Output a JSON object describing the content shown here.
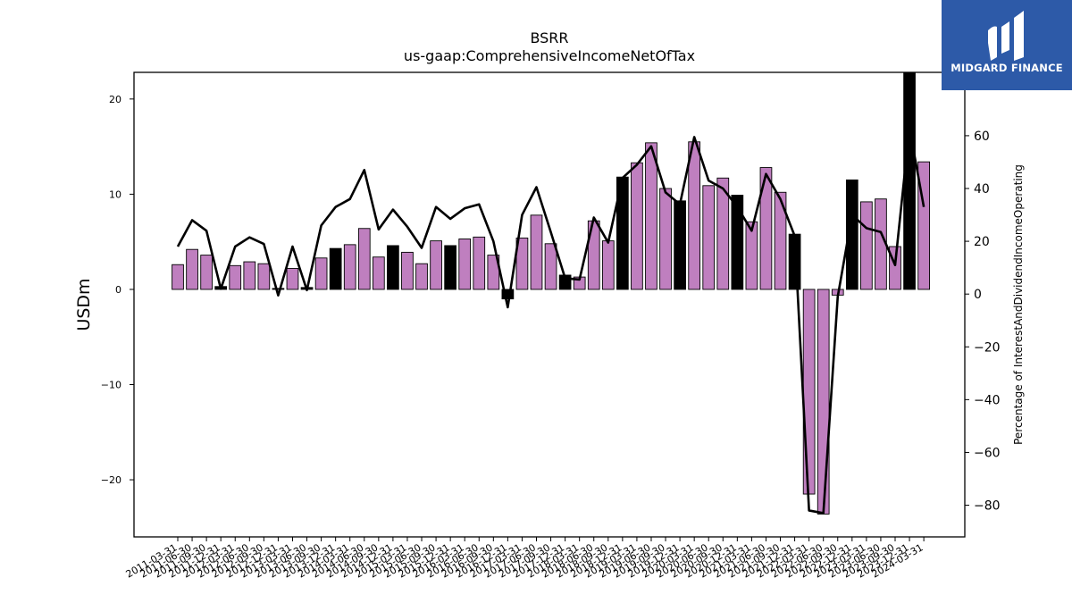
{
  "chart_data": {
    "type": "bar",
    "title": "BSRR",
    "subtitle": "us-gaap:ComprehensiveIncomeNetOfTax",
    "ylabel": "USDm",
    "y2label": "Percentage of InterestAndDividendIncomeOperating",
    "ylim": [
      -26,
      22.8
    ],
    "y2lim": [
      -92,
      84
    ],
    "yticks": [
      -20,
      -10,
      0,
      10,
      20
    ],
    "y2ticks": [
      -80,
      -60,
      -40,
      -20,
      0,
      20,
      40,
      60
    ],
    "grid": false,
    "colors": {
      "bar": "#bf7fbf",
      "bar_highlight": "#000000",
      "line": "#000000"
    },
    "categories": [
      "2011-03-31",
      "2011-06-30",
      "2011-09-30",
      "2011-12-31",
      "2012-03-31",
      "2012-06-30",
      "2012-09-30",
      "2012-12-31",
      "2013-03-31",
      "2013-06-30",
      "2013-09-30",
      "2013-12-31",
      "2014-03-31",
      "2014-06-30",
      "2014-09-30",
      "2014-12-31",
      "2015-03-31",
      "2015-06-30",
      "2015-09-30",
      "2015-12-31",
      "2016-03-31",
      "2016-06-30",
      "2016-09-30",
      "2016-12-31",
      "2017-03-31",
      "2017-06-30",
      "2017-09-30",
      "2017-12-31",
      "2018-03-31",
      "2018-06-30",
      "2018-09-30",
      "2018-12-31",
      "2019-03-31",
      "2019-06-30",
      "2019-09-30",
      "2019-12-31",
      "2020-03-31",
      "2020-06-30",
      "2020-09-30",
      "2020-12-31",
      "2021-03-31",
      "2021-06-30",
      "2021-09-30",
      "2021-12-31",
      "2022-03-31",
      "2022-06-30",
      "2022-09-30",
      "2022-12-31",
      "2023-03-31",
      "2023-06-30",
      "2023-09-30",
      "2023-12-31",
      "2024-03-31"
    ],
    "tick_labels": [
      "2011-03-31",
      "2011-06-30",
      "2011-09-30",
      "2011-12-31",
      "2012-03-31",
      "2012-06-30",
      "2012-09-30",
      "2012-12-31",
      "2013-03-31",
      "2013-06-30",
      "2013-09-30",
      "2013-12-31",
      "2014-03-31",
      "2014-06-30",
      "2014-09-30",
      "2014-12-31",
      "2015-03-31",
      "2015-06-30",
      "2015-09-30",
      "2015-12-31",
      "2016-03-31",
      "2016-06-30",
      "2016-09-30",
      "2016-12-31",
      "2017-03-31",
      "2017-06-30",
      "2017-09-30",
      "2017-12-31",
      "2018-03-31",
      "2018-06-30",
      "2018-09-30",
      "2018-12-31",
      "2019-03-31",
      "2019-06-30",
      "2019-09-30",
      "2019-12-31",
      "2020-03-31",
      "2020-06-30",
      "2020-09-30",
      "2020-12-31",
      "2021-03-31",
      "2021-06-30",
      "2021-09-30",
      "2021-12-31",
      "2022-03-31",
      "2022-06-30",
      "2022-09-30",
      "2022-12-31",
      "2023-03-31",
      "2023-06-30",
      "2023-09-30",
      "2023-12-31",
      "2024-03-31"
    ],
    "series": [
      {
        "axis": "left",
        "values": [
          2.6,
          4.2,
          3.6,
          0.3,
          2.5,
          2.9,
          2.7,
          0.1,
          2.2,
          0.2,
          3.3,
          4.3,
          4.7,
          6.4,
          3.4,
          4.6,
          3.9,
          2.7,
          5.1,
          4.6,
          5.3,
          5.5,
          3.6,
          -1.0,
          5.4,
          7.8,
          4.8,
          1.5,
          1.3,
          7.2,
          5.1,
          11.8,
          13.3,
          15.4,
          10.6,
          9.3,
          15.5,
          10.9,
          11.7,
          9.9,
          7.1,
          12.8,
          10.2,
          5.8,
          -21.5,
          -23.6,
          -0.6,
          11.5,
          9.2,
          9.5,
          4.5,
          22.8,
          13.4
        ],
        "highlight": [
          false,
          false,
          false,
          true,
          false,
          false,
          false,
          true,
          false,
          true,
          false,
          true,
          false,
          false,
          false,
          true,
          false,
          false,
          false,
          true,
          false,
          false,
          false,
          true,
          false,
          false,
          false,
          true,
          false,
          false,
          false,
          true,
          false,
          false,
          false,
          true,
          false,
          false,
          false,
          true,
          false,
          false,
          false,
          true,
          false,
          false,
          false,
          true,
          false,
          false,
          false,
          true,
          false
        ]
      },
      {
        "axis": "right",
        "values": [
          18,
          28,
          24,
          2,
          18,
          21.5,
          19,
          -0.5,
          18,
          1.5,
          26,
          33,
          36,
          47,
          24.5,
          32,
          25.5,
          17.5,
          33,
          28.5,
          32.5,
          34,
          20,
          -5,
          30,
          40.5,
          23.5,
          6,
          5.5,
          29,
          19.5,
          44,
          49,
          56,
          38.5,
          34,
          59.5,
          43,
          40,
          33,
          24,
          45.5,
          36,
          22,
          -82,
          -83,
          -1,
          30,
          25,
          23.5,
          11,
          63,
          33
        ]
      }
    ]
  },
  "logo": {
    "text": "MIDGARD FINANCE",
    "icon": "midgard-logo-icon"
  }
}
